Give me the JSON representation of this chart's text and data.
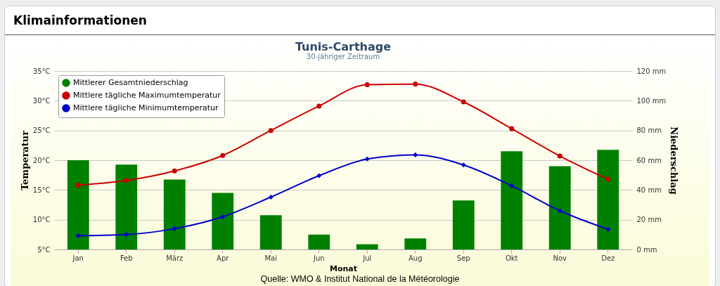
{
  "chart_data": {
    "type": "bar",
    "title": "Tunis-Carthage",
    "subtitle": "30-jähriger Zeitraum",
    "xlabel": "Monat",
    "ylabel": "Temperatur",
    "y2label": "Niederschlag",
    "annotations": [
      "Klimainformationen",
      "Quelle: WMO & Institut National de la Météorologie"
    ],
    "categories": [
      "Jan",
      "Feb",
      "März",
      "Apr",
      "Mai",
      "Jun",
      "Jul",
      "Aug",
      "Sep",
      "Okt",
      "Nov",
      "Dez"
    ],
    "series": [
      {
        "name": "Mittlerer Gesamtniederschlag",
        "axis": "y2",
        "color": "#008000",
        "values": [
          60,
          57,
          47,
          38,
          23,
          10,
          3.5,
          7.5,
          33,
          66,
          56,
          67
        ]
      },
      {
        "name": "Mittlere tägliche Maximumtemperatur",
        "type": "line",
        "axis": "y",
        "marker": "circle",
        "color": "#cc0000",
        "values": [
          15.8,
          16.6,
          18.2,
          20.8,
          25.0,
          29.1,
          32.7,
          32.8,
          29.8,
          25.3,
          20.7,
          16.8
        ]
      },
      {
        "name": "Mittlere tägliche Minimumtemperatur",
        "type": "line",
        "axis": "y",
        "marker": "diamond",
        "color": "#0000cc",
        "values": [
          7.3,
          7.5,
          8.5,
          10.5,
          13.8,
          17.4,
          20.2,
          20.9,
          19.2,
          15.7,
          11.5,
          8.4
        ]
      }
    ],
    "ylim": [
      5,
      35
    ],
    "yticks": [
      {
        "value": 5,
        "label": "5°C"
      },
      {
        "value": 10,
        "label": "10°C"
      },
      {
        "value": 15,
        "label": "15°C"
      },
      {
        "value": 20,
        "label": "20°C"
      },
      {
        "value": 25,
        "label": "25°C"
      },
      {
        "value": 30,
        "label": "30°C"
      },
      {
        "value": 35,
        "label": "35°C"
      }
    ],
    "y2lim": [
      0,
      120
    ],
    "y2ticks": [
      {
        "value": 0,
        "label": "0 mm"
      },
      {
        "value": 20,
        "label": "20 mm"
      },
      {
        "value": 40,
        "label": "40 mm"
      },
      {
        "value": 60,
        "label": "60 mm"
      },
      {
        "value": 80,
        "label": "80 mm"
      },
      {
        "value": 100,
        "label": "100 mm"
      },
      {
        "value": 120,
        "label": "120 mm"
      }
    ],
    "grid": "y",
    "legend": "top left"
  }
}
